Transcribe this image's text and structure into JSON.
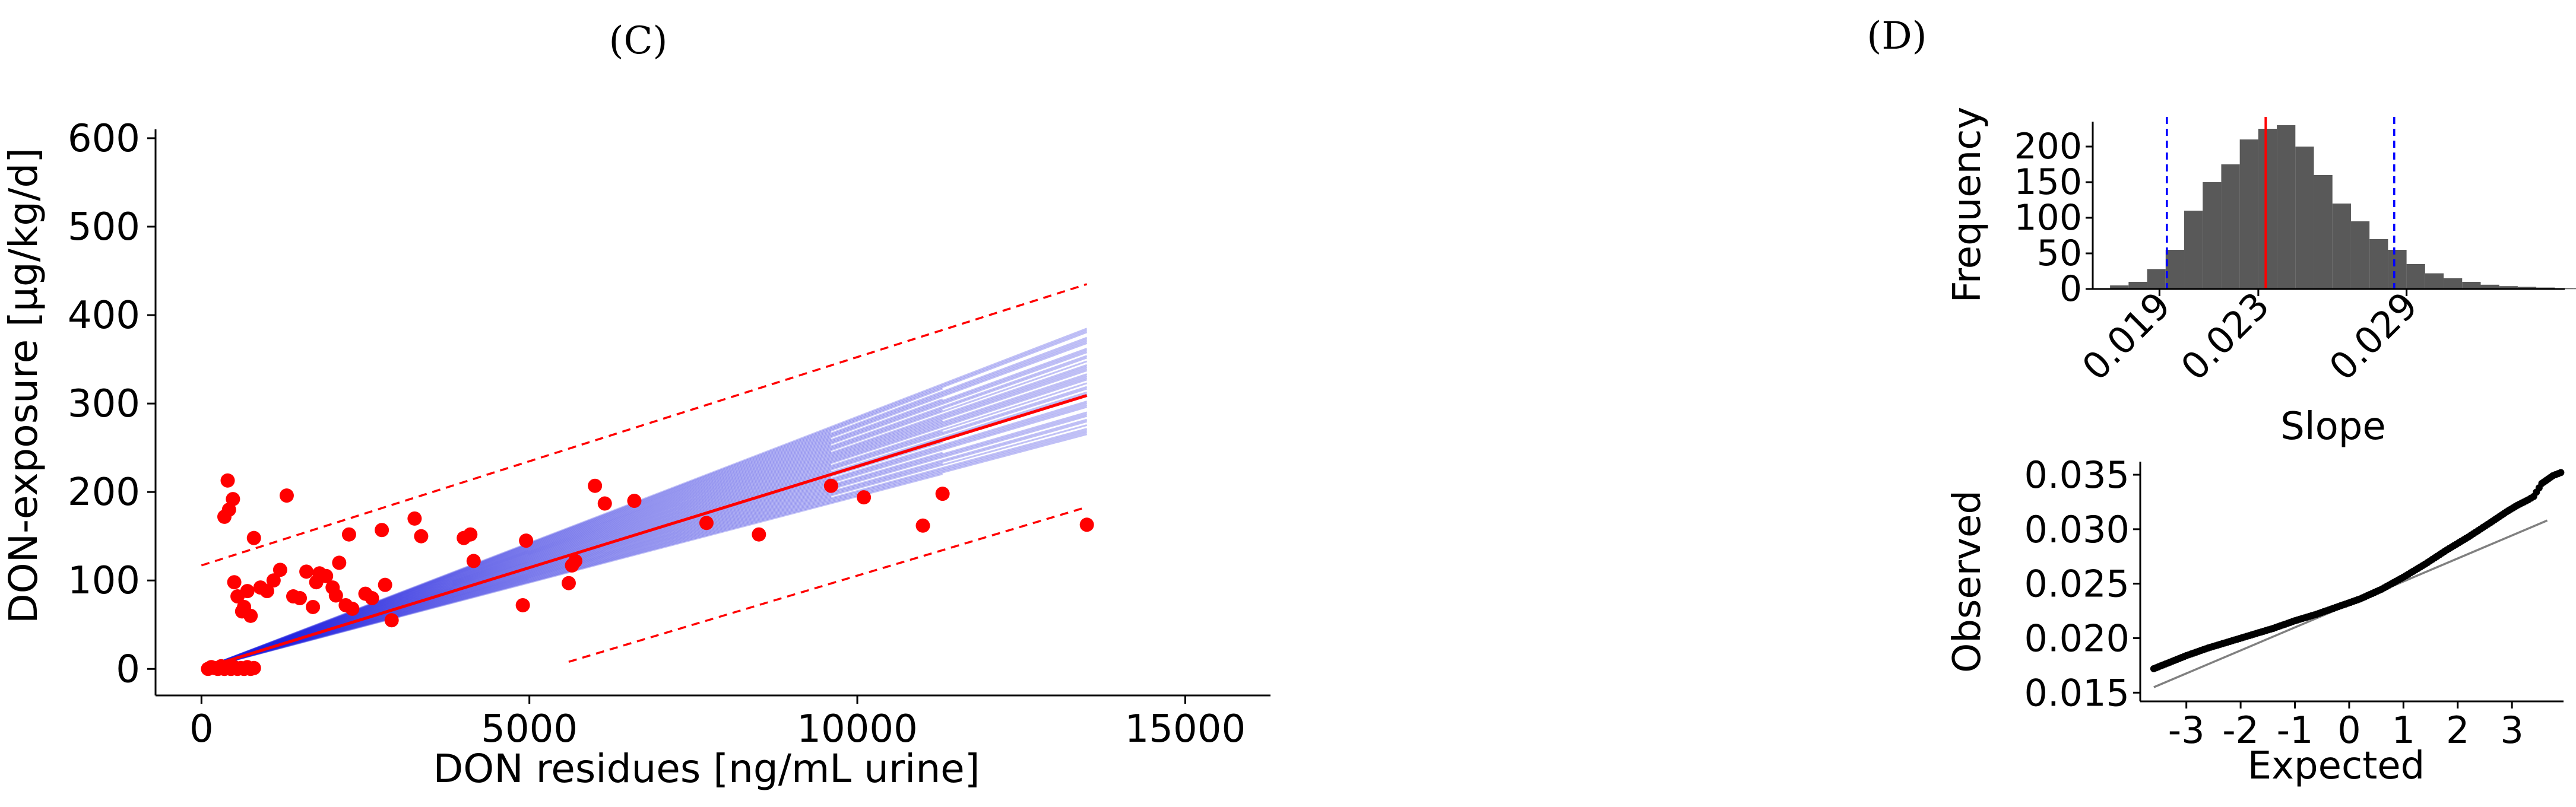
{
  "panels": {
    "c": {
      "label": "(C)"
    },
    "d": {
      "label": "(D)"
    }
  },
  "colors": {
    "points": "#ff0000",
    "fit_line": "#ff0000",
    "bootstrap_lines": "#2222dd",
    "histogram_bars": "#595959",
    "ci_lines": "#0000ff",
    "qq_points": "#000000",
    "reference_line": "#808080"
  },
  "chart_data": [
    {
      "id": "C",
      "type": "scatter",
      "title": "",
      "xlabel": "DON residues [ng/mL urine]",
      "ylabel": "DON-exposure [µg/kg/d]",
      "xlim": [
        -700,
        16300
      ],
      "ylim": [
        -30,
        610
      ],
      "xticks": [
        0,
        5000,
        10000,
        15000
      ],
      "yticks": [
        0,
        100,
        200,
        300,
        400,
        500,
        600
      ],
      "grid": false,
      "fit": {
        "intercept": 0,
        "slope": 0.0229,
        "x_end": 13500
      },
      "prediction_band": {
        "upper": {
          "x": [
            0,
            13500
          ],
          "y": [
            117,
            435
          ]
        },
        "lower": {
          "x": [
            5600,
            13500
          ],
          "y": [
            8,
            183
          ]
        }
      },
      "bootstrap_slope_range": [
        0.0195,
        0.0285
      ],
      "points": [
        [
          100,
          0
        ],
        [
          150,
          2
        ],
        [
          200,
          1
        ],
        [
          250,
          0
        ],
        [
          300,
          3
        ],
        [
          350,
          0
        ],
        [
          400,
          1
        ],
        [
          450,
          0
        ],
        [
          500,
          2
        ],
        [
          550,
          0
        ],
        [
          600,
          1
        ],
        [
          650,
          0
        ],
        [
          700,
          2
        ],
        [
          750,
          0
        ],
        [
          800,
          1
        ],
        [
          350,
          172
        ],
        [
          400,
          213
        ],
        [
          420,
          180
        ],
        [
          480,
          192
        ],
        [
          500,
          98
        ],
        [
          550,
          82
        ],
        [
          620,
          65
        ],
        [
          650,
          70
        ],
        [
          700,
          88
        ],
        [
          750,
          60
        ],
        [
          800,
          148
        ],
        [
          900,
          92
        ],
        [
          1000,
          88
        ],
        [
          1100,
          100
        ],
        [
          1200,
          112
        ],
        [
          1300,
          196
        ],
        [
          1400,
          82
        ],
        [
          1500,
          80
        ],
        [
          1600,
          110
        ],
        [
          1700,
          70
        ],
        [
          1750,
          98
        ],
        [
          1800,
          108
        ],
        [
          1900,
          105
        ],
        [
          2000,
          92
        ],
        [
          2050,
          83
        ],
        [
          2100,
          120
        ],
        [
          2200,
          72
        ],
        [
          2250,
          152
        ],
        [
          2300,
          68
        ],
        [
          2500,
          85
        ],
        [
          2600,
          80
        ],
        [
          2750,
          157
        ],
        [
          2800,
          95
        ],
        [
          2900,
          55
        ],
        [
          3250,
          170
        ],
        [
          3350,
          150
        ],
        [
          4000,
          148
        ],
        [
          4100,
          152
        ],
        [
          4150,
          122
        ],
        [
          4900,
          72
        ],
        [
          4950,
          145
        ],
        [
          5600,
          97
        ],
        [
          5650,
          117
        ],
        [
          5700,
          122
        ],
        [
          6000,
          207
        ],
        [
          6150,
          187
        ],
        [
          6600,
          190
        ],
        [
          7700,
          165
        ],
        [
          8500,
          152
        ],
        [
          9600,
          207
        ],
        [
          10100,
          194
        ],
        [
          11000,
          162
        ],
        [
          11300,
          198
        ],
        [
          13500,
          163
        ]
      ]
    },
    {
      "id": "D-top",
      "type": "bar",
      "title": "",
      "xlabel": "Slope",
      "ylabel": "Frequency",
      "xticks": [
        0.019,
        0.023,
        0.029
      ],
      "yticks": [
        0,
        50,
        100,
        150,
        200
      ],
      "xlim": [
        0.0163,
        0.0354
      ],
      "ylim": [
        0,
        235
      ],
      "bin_width": 0.00075,
      "bins_start": 0.017,
      "values": [
        5,
        10,
        28,
        55,
        110,
        150,
        175,
        210,
        225,
        230,
        200,
        160,
        120,
        95,
        70,
        55,
        35,
        22,
        15,
        10,
        6,
        4,
        3,
        2,
        1,
        1
      ],
      "vlines": {
        "mean": 0.0233,
        "ci_low": 0.0193,
        "ci_high": 0.0285
      }
    },
    {
      "id": "D-bottom",
      "type": "scatter",
      "title": "",
      "xlabel": "Expected",
      "ylabel": "Observed",
      "xticks": [
        -3,
        -2,
        -1,
        0,
        1,
        2,
        3
      ],
      "yticks": [
        0.015,
        0.02,
        0.025,
        0.03,
        0.035
      ],
      "xlim": [
        -3.85,
        3.95
      ],
      "ylim": [
        0.0142,
        0.0362
      ],
      "reference_line": {
        "x": [
          -3.6,
          3.65
        ],
        "y": [
          0.0155,
          0.0308
        ]
      },
      "qq_quantiles": [
        [
          -3.6,
          0.0172
        ],
        [
          -3.3,
          0.0178
        ],
        [
          -3.0,
          0.0184
        ],
        [
          -2.6,
          0.0191
        ],
        [
          -2.2,
          0.0197
        ],
        [
          -1.8,
          0.0203
        ],
        [
          -1.4,
          0.0209
        ],
        [
          -1.0,
          0.0216
        ],
        [
          -0.6,
          0.0222
        ],
        [
          -0.2,
          0.0229
        ],
        [
          0.2,
          0.0236
        ],
        [
          0.6,
          0.0245
        ],
        [
          1.0,
          0.0256
        ],
        [
          1.4,
          0.0268
        ],
        [
          1.8,
          0.0281
        ],
        [
          2.2,
          0.0293
        ],
        [
          2.6,
          0.0306
        ],
        [
          2.9,
          0.0316
        ],
        [
          3.1,
          0.0322
        ],
        [
          3.3,
          0.0327
        ],
        [
          3.4,
          0.033
        ],
        [
          3.55,
          0.0342
        ],
        [
          3.75,
          0.0349
        ],
        [
          3.9,
          0.0352
        ]
      ]
    }
  ]
}
